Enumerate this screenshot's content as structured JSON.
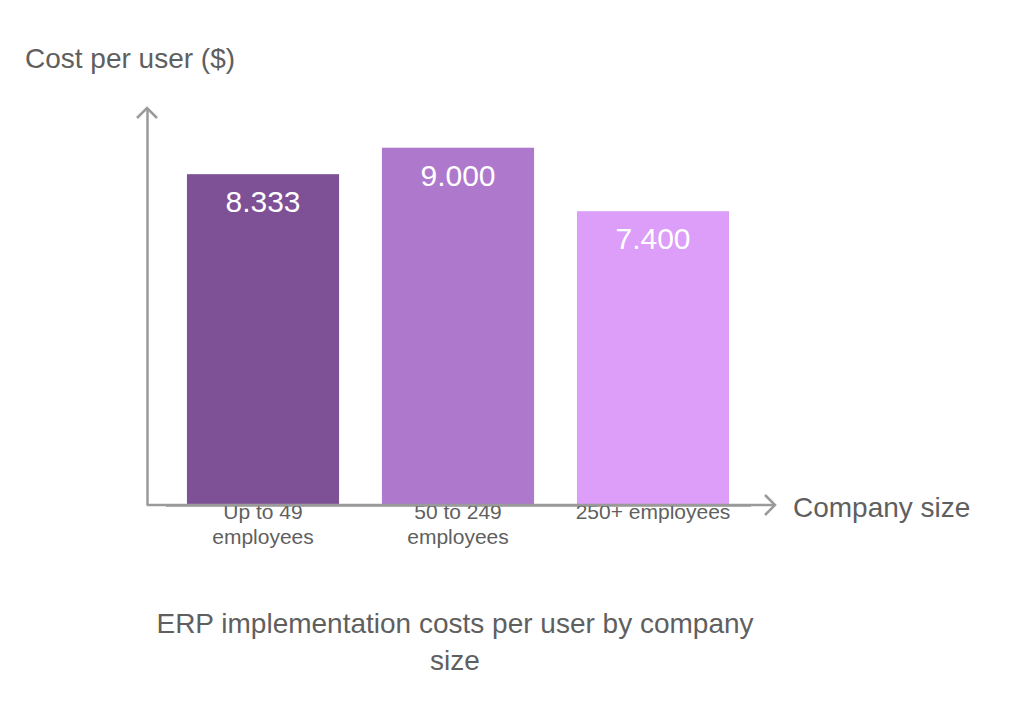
{
  "chart_data": {
    "type": "bar",
    "title": "ERP implementation costs per user by company size",
    "xlabel": "Company size",
    "ylabel": "Cost per user ($)",
    "categories": [
      "Up to 49 employees",
      "50 to 249 employees",
      "250+ employees"
    ],
    "values": [
      8333,
      9000,
      7400
    ],
    "value_labels": [
      "8.333",
      "9.000",
      "7.400"
    ],
    "colors": [
      "#7e5095",
      "#ae79cc",
      "#dc9ef8"
    ],
    "ylim": [
      0,
      10000
    ],
    "data_labels": true,
    "tick_labels": "x"
  }
}
